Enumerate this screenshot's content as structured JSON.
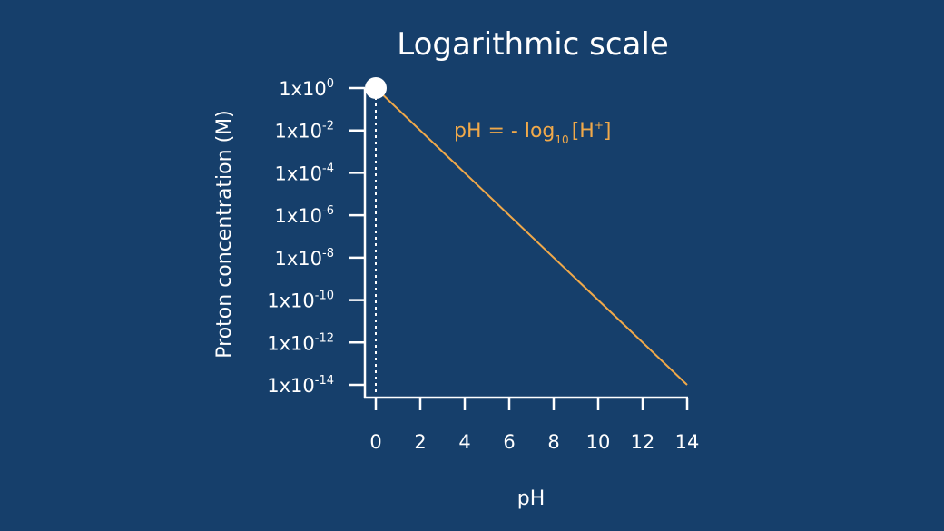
{
  "chart_data": {
    "type": "line",
    "title": "Logarithmic scale",
    "xlabel": "pH",
    "ylabel": "Proton concentration (M)",
    "x_ticks": [
      0,
      2,
      4,
      6,
      8,
      10,
      12,
      14
    ],
    "y_ticks": [
      {
        "base": "1x10",
        "exp": "0",
        "log_value": 0
      },
      {
        "base": "1x10",
        "exp": "-2",
        "log_value": -2
      },
      {
        "base": "1x10",
        "exp": "-4",
        "log_value": -4
      },
      {
        "base": "1x10",
        "exp": "-6",
        "log_value": -6
      },
      {
        "base": "1x10",
        "exp": "-8",
        "log_value": -8
      },
      {
        "base": "1x10",
        "exp": "-10",
        "log_value": -10
      },
      {
        "base": "1x10",
        "exp": "-12",
        "log_value": -12
      },
      {
        "base": "1x10",
        "exp": "-14",
        "log_value": -14
      }
    ],
    "xlim": [
      0,
      14
    ],
    "ylim": [
      "1x10^-14",
      "1x10^0"
    ],
    "y_scale": "log",
    "series": [
      {
        "x": [
          0,
          14
        ],
        "y": [
          "1x10^0",
          "1x10^-14"
        ],
        "color": "#f0a94a"
      }
    ],
    "highlight_point": {
      "x": 0,
      "y": "1x10^0",
      "color": "#ffffff"
    },
    "reference_line": {
      "x": 0,
      "style": "dotted",
      "color": "#ffffff"
    },
    "annotation": {
      "pre": "pH = - log",
      "sub": "10",
      "mid": "[H",
      "sup": "+",
      "post": "]",
      "color": "#f0a94a"
    },
    "grid": false
  }
}
